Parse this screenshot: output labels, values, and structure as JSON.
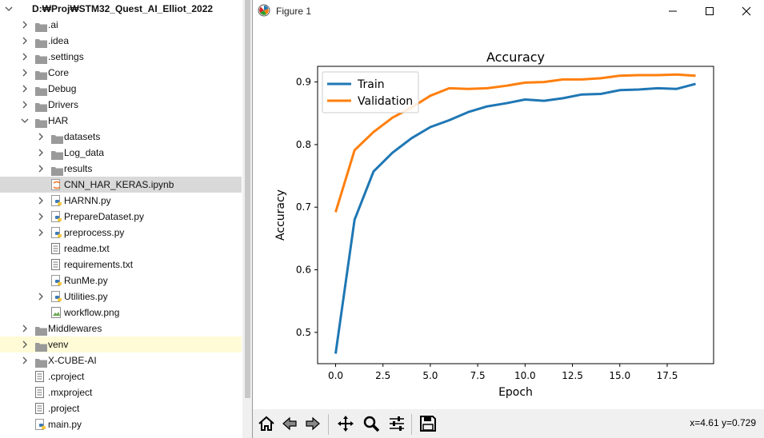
{
  "tree": {
    "items": [
      {
        "label": "D:₩Proj₩STM32_Quest_AI_Elliot_2022",
        "depth": 0,
        "arrow": "down",
        "icon": "folder-icon",
        "kind": "root"
      },
      {
        "label": ".ai",
        "depth": 1,
        "arrow": "right",
        "icon": "folder-icon"
      },
      {
        "label": ".idea",
        "depth": 1,
        "arrow": "right",
        "icon": "folder-icon"
      },
      {
        "label": ".settings",
        "depth": 1,
        "arrow": "right",
        "icon": "folder-icon"
      },
      {
        "label": "Core",
        "depth": 1,
        "arrow": "right",
        "icon": "folder-icon"
      },
      {
        "label": "Debug",
        "depth": 1,
        "arrow": "right",
        "icon": "folder-icon"
      },
      {
        "label": "Drivers",
        "depth": 1,
        "arrow": "right",
        "icon": "folder-icon"
      },
      {
        "label": "HAR",
        "depth": 1,
        "arrow": "down",
        "icon": "folder-icon"
      },
      {
        "label": "datasets",
        "depth": 2,
        "arrow": "right",
        "icon": "folder-icon"
      },
      {
        "label": "Log_data",
        "depth": 2,
        "arrow": "right",
        "icon": "folder-icon"
      },
      {
        "label": "results",
        "depth": 2,
        "arrow": "right",
        "icon": "folder-icon"
      },
      {
        "label": "CNN_HAR_KERAS.ipynb",
        "depth": 2,
        "arrow": "",
        "icon": "notebook-file-icon",
        "selected": true
      },
      {
        "label": "HARNN.py",
        "depth": 2,
        "arrow": "right",
        "icon": "python-file-icon"
      },
      {
        "label": "PrepareDataset.py",
        "depth": 2,
        "arrow": "right",
        "icon": "python-file-icon"
      },
      {
        "label": "preprocess.py",
        "depth": 2,
        "arrow": "right",
        "icon": "python-file-icon"
      },
      {
        "label": "readme.txt",
        "depth": 2,
        "arrow": "",
        "icon": "text-file-icon"
      },
      {
        "label": "requirements.txt",
        "depth": 2,
        "arrow": "",
        "icon": "text-file-icon"
      },
      {
        "label": "RunMe.py",
        "depth": 2,
        "arrow": "",
        "icon": "python-file-icon"
      },
      {
        "label": "Utilities.py",
        "depth": 2,
        "arrow": "right",
        "icon": "python-file-icon"
      },
      {
        "label": "workflow.png",
        "depth": 2,
        "arrow": "",
        "icon": "image-file-icon"
      },
      {
        "label": "Middlewares",
        "depth": 1,
        "arrow": "right",
        "icon": "folder-icon"
      },
      {
        "label": "venv",
        "depth": 1,
        "arrow": "right",
        "icon": "folder-icon",
        "highlight": true
      },
      {
        "label": "X-CUBE-AI",
        "depth": 1,
        "arrow": "right",
        "icon": "folder-icon"
      },
      {
        "label": ".cproject",
        "depth": 1,
        "arrow": "",
        "icon": "text-file-icon"
      },
      {
        "label": ".mxproject",
        "depth": 1,
        "arrow": "",
        "icon": "text-file-icon"
      },
      {
        "label": ".project",
        "depth": 1,
        "arrow": "",
        "icon": "text-file-icon"
      },
      {
        "label": "main.py",
        "depth": 1,
        "arrow": "",
        "icon": "python-file-icon"
      }
    ]
  },
  "figure": {
    "window_title": "Figure 1",
    "coords": "x=4.61 y=0.729",
    "toolbar": [
      "home-icon",
      "back-icon",
      "forward-icon",
      "pan-icon",
      "zoom-icon",
      "configure-subplots-icon",
      "save-icon"
    ]
  },
  "chart_data": {
    "type": "line",
    "title": "Accuracy",
    "xlabel": "Epoch",
    "ylabel": "Accuracy",
    "xlim": [
      -0.95,
      19.95
    ],
    "ylim": [
      0.45,
      0.925
    ],
    "xticks": [
      "0.0",
      "2.5",
      "5.0",
      "7.5",
      "10.0",
      "12.5",
      "15.0",
      "17.5"
    ],
    "yticks": [
      "0.5",
      "0.6",
      "0.7",
      "0.8",
      "0.9"
    ],
    "legend_position": "top-left",
    "x": [
      0,
      1,
      2,
      3,
      4,
      5,
      6,
      7,
      8,
      9,
      10,
      11,
      12,
      13,
      14,
      15,
      16,
      17,
      18,
      19
    ],
    "series": [
      {
        "name": "Train",
        "color": "#1f77b4",
        "values": [
          0.466,
          0.68,
          0.757,
          0.787,
          0.81,
          0.828,
          0.839,
          0.852,
          0.861,
          0.866,
          0.872,
          0.87,
          0.874,
          0.88,
          0.881,
          0.887,
          0.888,
          0.89,
          0.889,
          0.897
        ]
      },
      {
        "name": "Validation",
        "color": "#ff7f0e",
        "values": [
          0.692,
          0.791,
          0.82,
          0.843,
          0.859,
          0.878,
          0.89,
          0.889,
          0.89,
          0.894,
          0.899,
          0.9,
          0.904,
          0.904,
          0.906,
          0.91,
          0.911,
          0.911,
          0.912,
          0.91
        ]
      }
    ]
  }
}
